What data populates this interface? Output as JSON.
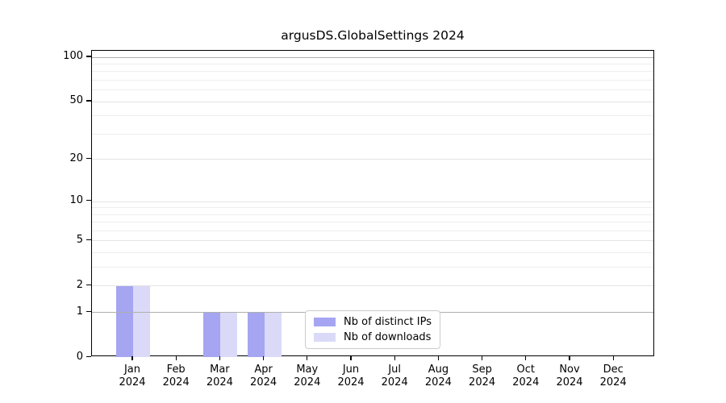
{
  "title": "argusDS.GlobalSettings 2024",
  "chart_data": {
    "type": "bar",
    "title": "argusDS.GlobalSettings 2024",
    "categories": [
      "Jan",
      "Feb",
      "Mar",
      "Apr",
      "May",
      "Jun",
      "Jul",
      "Aug",
      "Sep",
      "Oct",
      "Nov",
      "Dec"
    ],
    "year_label": "2024",
    "series": [
      {
        "name": "Nb of distinct IPs",
        "color": "#a5a5f1",
        "values": [
          2,
          0,
          1,
          1,
          0,
          0,
          0,
          0,
          0,
          0,
          0,
          0
        ]
      },
      {
        "name": "Nb of downloads",
        "color": "#dadaf8",
        "values": [
          2,
          0,
          1,
          1,
          0,
          0,
          0,
          0,
          0,
          0,
          0,
          0
        ]
      }
    ],
    "yscale": "log1p",
    "ylim": [
      0,
      110
    ],
    "y_ticks": [
      0,
      1,
      2,
      5,
      10,
      20,
      50,
      100
    ],
    "y_minor_ticks": [
      3,
      4,
      6,
      7,
      8,
      9,
      30,
      40,
      60,
      70,
      80,
      90
    ],
    "emphasized_gridlines": [
      1,
      100
    ],
    "grid": "horizontal",
    "legend_position": "lower center",
    "colors": {
      "grid_major_emphasis": "#b0b0b0",
      "grid_major": "#e4e4e4",
      "grid_minor": "#eeeeee",
      "axis": "#000000"
    }
  }
}
